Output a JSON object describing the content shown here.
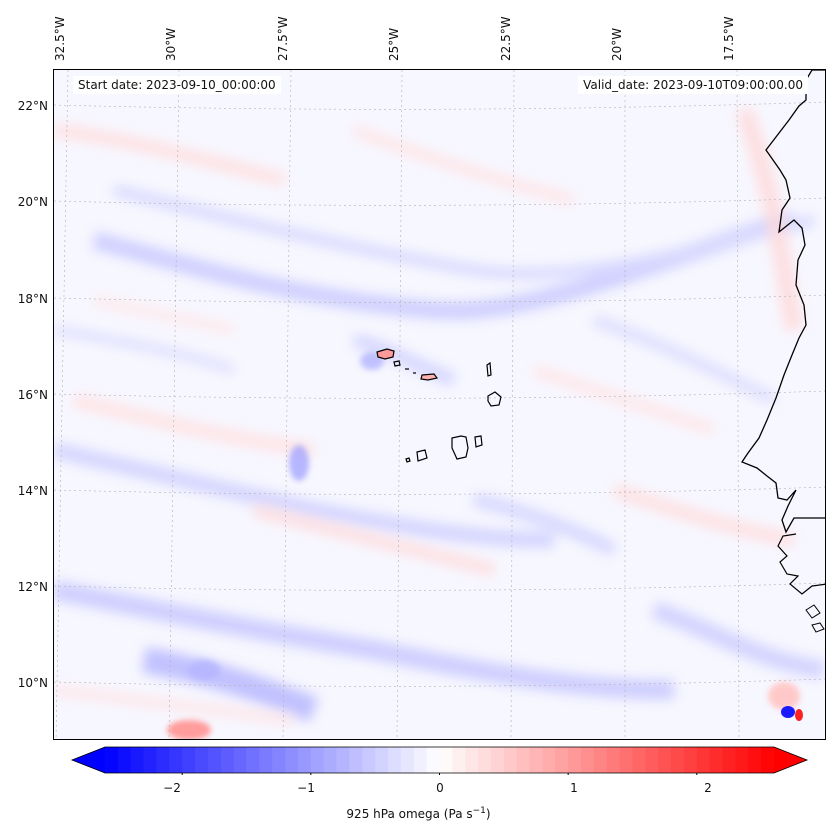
{
  "map": {
    "start_date": "Start date: 2023-09-10_00:00:00",
    "valid_date": "Valid_date: 2023-09-10T09:00:00.00",
    "lon_ticks": [
      "32.5°W",
      "30°W",
      "27.5°W",
      "25°W",
      "22.5°W",
      "20°W",
      "17.5°W"
    ],
    "lat_ticks": [
      "22°N",
      "20°N",
      "18°N",
      "16°N",
      "14°N",
      "12°N",
      "10°N"
    ],
    "lon_range": [
      -32.5,
      -15.2
    ],
    "lat_range": [
      8.9,
      22.8
    ],
    "field_colormap": "bwr",
    "coastline_color": "#000000",
    "grid": "dotted gray",
    "features": [
      "Cape Verde islands",
      "West African coastline (Senegal, Gambia, Guinea-Bissau)"
    ]
  },
  "colorbar": {
    "ticks": [
      "−2",
      "−1",
      "0",
      "1",
      "2"
    ],
    "tick_values": [
      -2,
      -1,
      0,
      1,
      2
    ],
    "range": [
      -2.6,
      2.6
    ],
    "extend": "both",
    "label_main": "925 hPa omega (Pa s",
    "label_sup": "−1",
    "label_close": ")",
    "color_min": "#0000ff",
    "color_mid": "#ffffff",
    "color_max": "#ff0000"
  }
}
